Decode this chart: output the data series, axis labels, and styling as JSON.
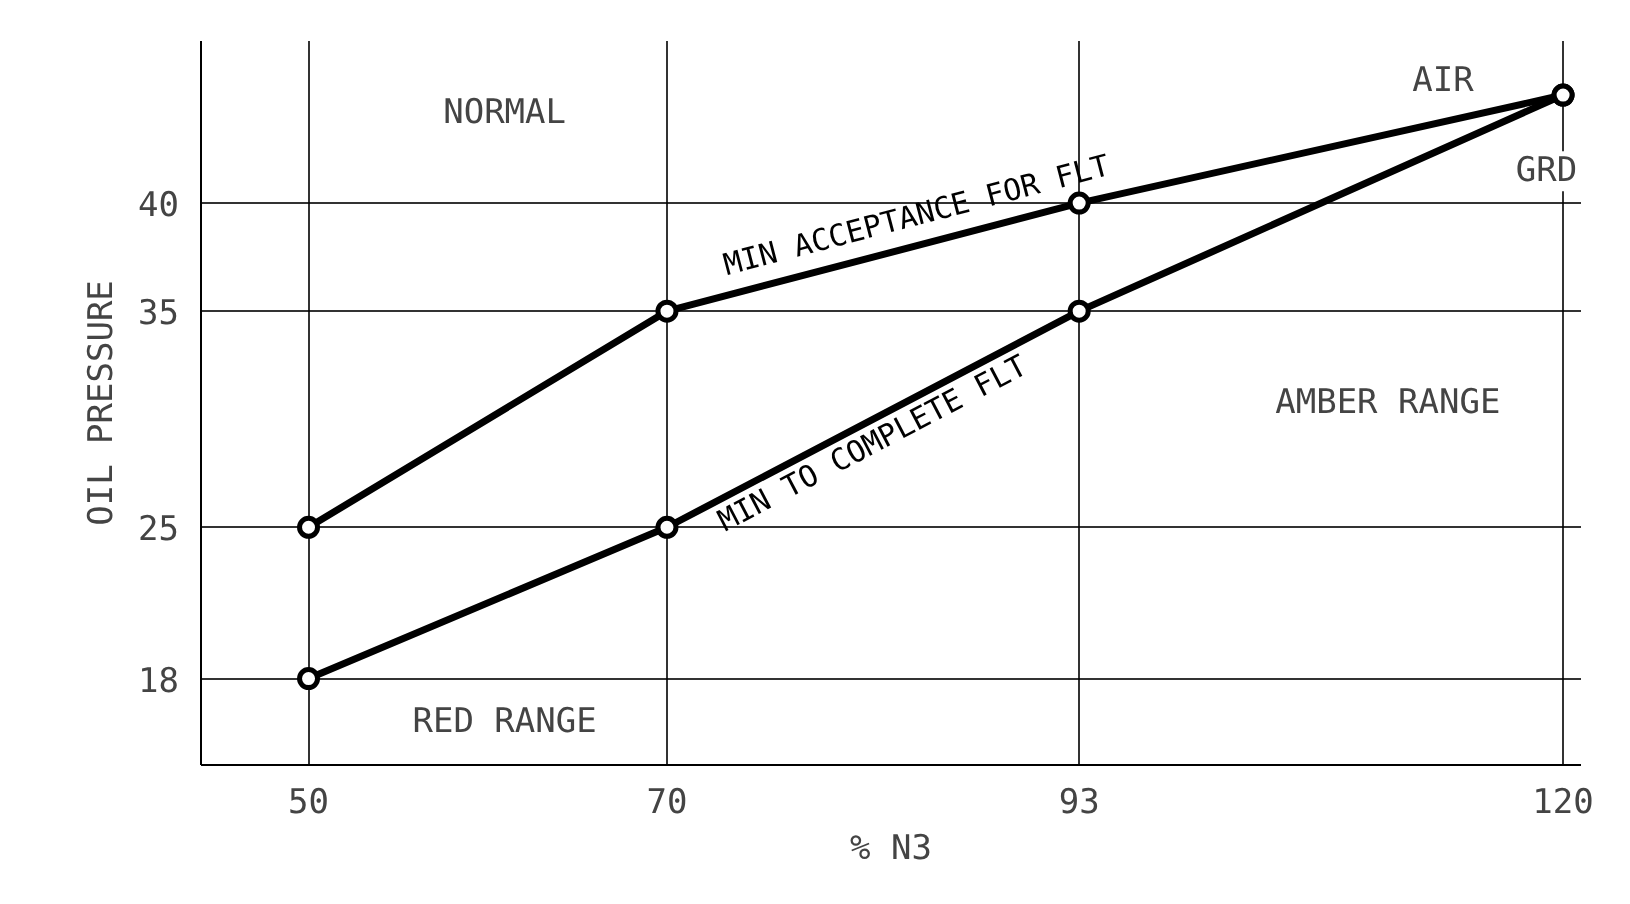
{
  "chart_data": {
    "type": "line",
    "xlabel": "% N3",
    "ylabel": "OIL PRESSURE",
    "x": [
      50,
      70,
      93,
      120
    ],
    "series": [
      {
        "name": "MIN ACCEPTANCE FOR FLT",
        "color": "#000000",
        "values": [
          25,
          35,
          40,
          45
        ]
      },
      {
        "name": "MIN TO COMPLETE FLT",
        "color": "#000000",
        "values": [
          18,
          25,
          35,
          45
        ]
      }
    ],
    "xlim": [
      44,
      121
    ],
    "ylim": [
      14,
      47.5
    ],
    "xticks": [
      50,
      70,
      93,
      120
    ],
    "yticks": [
      18,
      25,
      35,
      40
    ],
    "grid": true,
    "marker": "circle",
    "line_style": "solid",
    "annotations": [
      "NORMAL",
      "AIR",
      "GRD",
      "AMBER RANGE",
      "RED RANGE"
    ]
  }
}
